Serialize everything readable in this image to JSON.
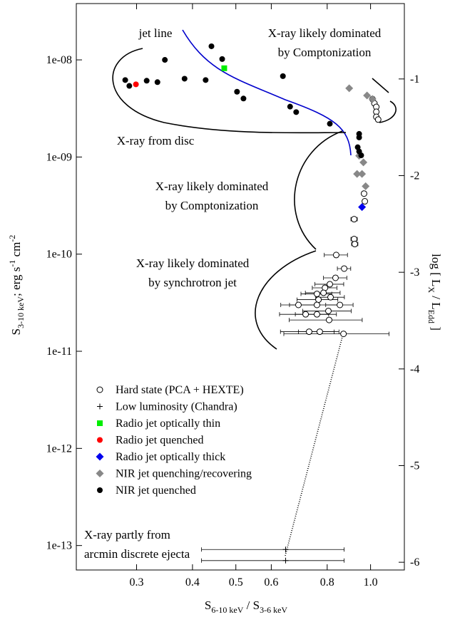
{
  "chart_data": {
    "type": "scatter",
    "xscale": "log",
    "yscale": "log",
    "xlabel": [
      "S",
      "6-10 keV",
      " / S",
      "3-6 keV"
    ],
    "ylabel": [
      "S",
      "3-10 keV",
      "; erg s",
      "-1",
      " cm",
      "-2"
    ],
    "y2label": [
      "log [ L",
      "X",
      " / L",
      "Edd",
      " ]"
    ],
    "xlim": [
      0.22,
      1.19
    ],
    "ylim": [
      5.6e-14,
      3.8e-08
    ],
    "y2lim": [
      -6.08,
      -0.22
    ],
    "xticks": [
      0.3,
      0.4,
      0.5,
      0.6,
      0.8,
      {
        "value": 1,
        "label": "1.0"
      }
    ],
    "yticks": [
      {
        "value": 1e-13,
        "label": "1e-13"
      },
      {
        "value": 1e-12,
        "label": "1e-12"
      },
      {
        "value": 1e-11,
        "label": "1e-11"
      },
      {
        "value": 1e-10,
        "label": "1e-10"
      },
      {
        "value": 1e-09,
        "label": "1e-09"
      },
      {
        "value": 1e-08,
        "label": "1e-08"
      }
    ],
    "y2ticks": [
      -6,
      -5,
      -4,
      -3,
      -2,
      -1
    ],
    "legend": "lower-left",
    "series": [
      {
        "name": "Hard state (PCA + HEXTE)",
        "marker": "circle-open",
        "color": "#000000",
        "x": [
          1.01,
          1.02,
          1.03,
          1.03,
          1.03,
          1.04,
          0.967,
          0.971,
          0.919,
          0.919,
          0.922,
          0.838,
          0.873,
          0.835,
          0.811,
          0.791,
          0.759,
          0.785,
          0.765,
          0.814,
          0.854,
          0.759,
          0.69,
          0.805,
          0.808,
          0.716,
          0.759,
          0.729,
          0.77,
          0.87
        ],
        "values": [
          3.95e-09,
          3.57e-09,
          3.28e-09,
          2.92e-09,
          2.59e-09,
          2.43e-09,
          4.2e-10,
          3.5e-10,
          2.29e-10,
          1.43e-10,
          1.27e-10,
          9.8e-11,
          7.1e-11,
          5.7e-11,
          4.9e-11,
          4.5e-11,
          3.9e-11,
          4e-11,
          3.4e-11,
          3.6e-11,
          3e-11,
          3e-11,
          3e-11,
          2.6e-11,
          2.1e-11,
          2.4e-11,
          2.4e-11,
          1.59e-11,
          1.59e-11,
          1.51e-11
        ],
        "xerr": [
          null,
          null,
          null,
          null,
          null,
          null,
          null,
          null,
          0.015,
          0.015,
          0.015,
          0.05,
          0.03,
          0.05,
          0.06,
          0.05,
          0.06,
          0.07,
          0.08,
          0.06,
          0.06,
          0.1,
          0.06,
          0.1,
          0.15,
          0.09,
          0.08,
          0.1,
          0.08,
          0.23
        ]
      },
      {
        "name": "Low luminosity (Chandra)",
        "marker": "plus",
        "color": "#000000",
        "x": [
          0.646,
          0.646
        ],
        "values": [
          9.1e-14,
          7e-14
        ],
        "xerr": [
          0.227,
          0.227
        ]
      },
      {
        "name": "Radio jet optically thin",
        "marker": "square",
        "color": "#00ee00",
        "x": [
          0.471
        ],
        "values": [
          8.2e-09
        ]
      },
      {
        "name": "Radio jet quenched",
        "marker": "circle",
        "color": "#ff0000",
        "x": [
          0.299
        ],
        "values": [
          5.6e-09
        ]
      },
      {
        "name": "Radio jet optically thick",
        "marker": "diamond",
        "color": "#0000ee",
        "x": [
          0.957
        ],
        "values": [
          3.05e-10
        ]
      },
      {
        "name": "NIR jet quenching/recovering",
        "marker": "diamond",
        "color": "#888888",
        "x": [
          0.896,
          0.982,
          1.01,
          0.943,
          0.964,
          0.933,
          0.957,
          0.975
        ],
        "values": [
          5.1e-09,
          4.3e-09,
          3.95e-09,
          1.03e-09,
          8.8e-10,
          6.7e-10,
          6.7e-10,
          5e-10
        ]
      },
      {
        "name": "NIR jet quenched",
        "marker": "circle",
        "color": "#000000",
        "x": [
          0.441,
          0.466,
          0.347,
          0.283,
          0.289,
          0.316,
          0.334,
          0.384,
          0.428,
          0.503,
          0.52,
          0.661,
          0.682,
          0.811,
          0.637,
          0.943,
          0.943,
          0.936,
          0.943,
          0.953
        ],
        "values": [
          1.38e-08,
          1.02e-08,
          1e-08,
          6.2e-09,
          5.4e-09,
          6.1e-09,
          5.9e-09,
          6.4e-09,
          6.2e-09,
          4.7e-09,
          4e-09,
          3.3e-09,
          2.9e-09,
          2.2e-09,
          6.8e-09,
          1.73e-09,
          1.59e-09,
          1.26e-09,
          1.14e-09,
          1.04e-09
        ]
      }
    ],
    "annotations": [
      {
        "lines": [
          "jet line"
        ],
        "color": "#0000cc"
      },
      {
        "lines": [
          "X-ray likely dominated",
          "by Comptonization"
        ]
      },
      {
        "lines": [
          "X-ray from disc"
        ]
      },
      {
        "lines": [
          "X-ray likely dominated",
          "by Comptonization"
        ]
      },
      {
        "lines": [
          "X-ray likely dominated",
          "by synchrotron jet"
        ]
      },
      {
        "lines": [
          "X-ray partly from",
          "arcmin discrete ejecta"
        ]
      }
    ]
  }
}
